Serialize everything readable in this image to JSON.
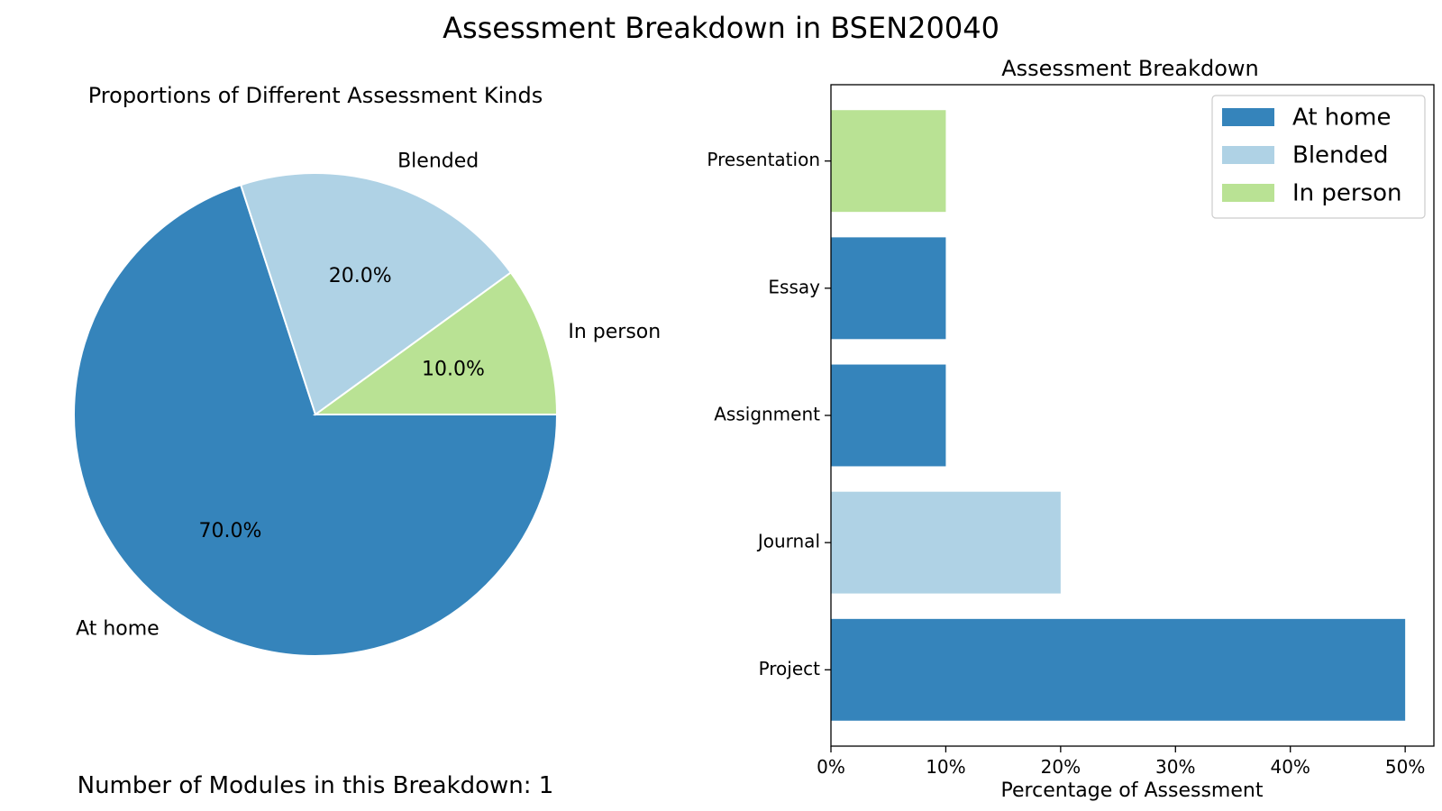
{
  "figure": {
    "title": "Assessment Breakdown in BSEN20040",
    "footnote_prefix": "Number of Modules in this Breakdown: ",
    "module_count": 1,
    "footnote": "Number of Modules in this Breakdown: 1"
  },
  "colors": {
    "At home": "#3584bb",
    "Blended": "#afd2e5",
    "In person": "#b9e294"
  },
  "chart_data": [
    {
      "type": "pie",
      "title": "Proportions of Different Assessment Kinds",
      "categories": [
        "At home",
        "Blended",
        "In person"
      ],
      "values": [
        70.0,
        20.0,
        10.0
      ],
      "value_labels": [
        "70.0%",
        "20.0%",
        "10.0%"
      ],
      "start_angle_deg": 0,
      "direction": "clockwise"
    },
    {
      "type": "bar",
      "orientation": "horizontal",
      "title": "Assessment Breakdown",
      "categories": [
        "Project",
        "Journal",
        "Assignment",
        "Essay",
        "Presentation"
      ],
      "values": [
        50,
        20,
        10,
        10,
        10
      ],
      "kind": [
        "At home",
        "Blended",
        "At home",
        "At home",
        "In person"
      ],
      "xlabel": "Percentage of Assessment",
      "ylabel": "",
      "xlim": [
        0,
        52.5
      ],
      "xticks": [
        0,
        10,
        20,
        30,
        40,
        50
      ],
      "xtick_labels": [
        "0%",
        "10%",
        "20%",
        "30%",
        "40%",
        "50%"
      ],
      "legend": {
        "entries": [
          "At home",
          "Blended",
          "In person"
        ],
        "position": "upper-right"
      },
      "grid": false
    }
  ]
}
